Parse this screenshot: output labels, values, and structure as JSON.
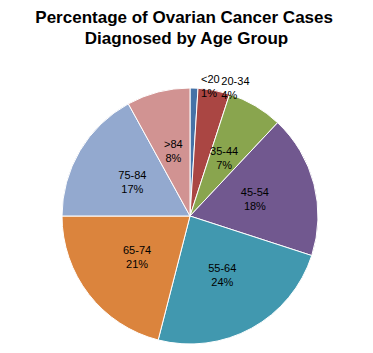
{
  "chart_data": {
    "type": "pie",
    "title": "Percentage of Ovarian Cancer Cases Diagnosed by Age Group",
    "categories": [
      "<20",
      "20-34",
      "35-44",
      "45-54",
      "55-64",
      "65-74",
      "75-84",
      ">84"
    ],
    "values": [
      1,
      4,
      7,
      18,
      24,
      21,
      17,
      8
    ],
    "value_labels": [
      "1%",
      "4%",
      "7%",
      "18%",
      "24%",
      "21%",
      "17%",
      "8%"
    ],
    "colors": [
      "#4572A7",
      "#AA4643",
      "#89A54E",
      "#71588F",
      "#4198AF",
      "#DB843D",
      "#93A9CF",
      "#D19392"
    ],
    "data_labels": true
  }
}
